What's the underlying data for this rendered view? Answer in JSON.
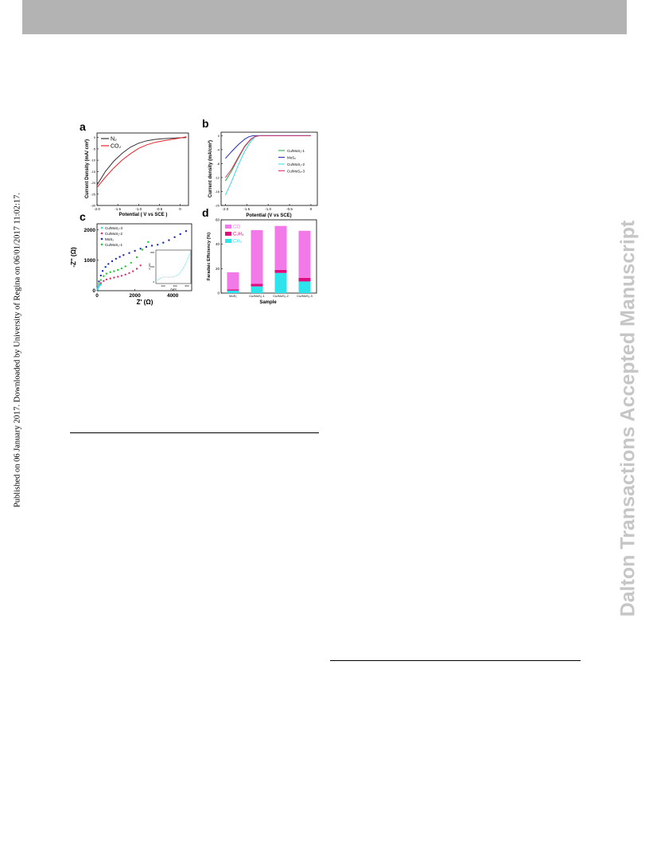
{
  "header_bar_color": "#b3b3b3",
  "side_note": "Published on 06 January 2017. Downloaded by University of Regina on 06/01/2017 11:02:17.",
  "watermark": "Dalton Transactions Accepted Manuscript",
  "figure": {
    "panel_a": {
      "label": "a",
      "xlabel": "Potential ( V vs SCE )",
      "ylabel": "Current Density (mA/ cm²)",
      "xticks": [
        "-2.0",
        "-1.5",
        "-1.0",
        "-0.5",
        "0"
      ],
      "yticks": [
        "0",
        "-5",
        "-10",
        "-15",
        "-20",
        "-25",
        "-30"
      ],
      "legend": [
        {
          "label": "N₂",
          "color": "#333333"
        },
        {
          "label": "CO₂",
          "color": "#e8232a"
        }
      ]
    },
    "panel_b": {
      "label": "b",
      "xlabel": "Potential (V vs SCE)",
      "ylabel": "Current density (mA/cm²)",
      "xticks": [
        "-2.0",
        "-1.5",
        "-1.0",
        "-0.5",
        "0"
      ],
      "yticks": [
        "0",
        "-4",
        "-8",
        "-12",
        "-16",
        "-20"
      ],
      "legend": [
        {
          "label": "Cu/MoS₂-1",
          "color": "#22a63a"
        },
        {
          "label": "MoS₂",
          "color": "#1f2ab5"
        },
        {
          "label": "Cu/MoS₂-2",
          "color": "#38d8e6"
        },
        {
          "label": "Cu/MoS₂-3",
          "color": "#e0306d"
        }
      ]
    },
    "panel_c": {
      "label": "c",
      "xlabel": "Z' (Ω)",
      "ylabel": "-Z'' (Ω)",
      "xticks": [
        "0",
        "2000",
        "4000"
      ],
      "yticks": [
        "0",
        "1000",
        "2000"
      ],
      "legend": [
        {
          "label": "Cu/MoS₂-3",
          "color": "#38d8e6"
        },
        {
          "label": "Cu/MoS₂-2",
          "color": "#e0306d"
        },
        {
          "label": "MoS₂",
          "color": "#1f2ab5"
        },
        {
          "label": "Cu/MoS₂-1",
          "color": "#22cc33"
        }
      ],
      "inset_ylabel": "-Z'' (Ω)",
      "inset_xlabel": "Z' (Ω)",
      "inset_xticks": [
        "200",
        "400",
        "600"
      ],
      "inset_yticks": [
        "200",
        "100",
        "0"
      ]
    },
    "panel_d": {
      "label": "d",
      "xlabel": "Sample",
      "ylabel": "Faradaic Efficiency (%)",
      "yticks": [
        "0",
        "20",
        "40",
        "60"
      ],
      "legend": [
        {
          "label": "CO",
          "color": "#f27ae8"
        },
        {
          "label": "C₂H₄",
          "color": "#e00c7d"
        },
        {
          "label": "CH₄",
          "color": "#2de3ec"
        }
      ]
    }
  },
  "chart_data": [
    {
      "type": "line",
      "panel": "a",
      "xlabel": "Potential ( V vs SCE )",
      "ylabel": "Current Density (mA/ cm²)",
      "xlim": [
        -2.0,
        0.2
      ],
      "ylim": [
        -30,
        2
      ],
      "series": [
        {
          "name": "N₂",
          "x": [
            -2.0,
            -1.8,
            -1.6,
            -1.4,
            -1.2,
            -1.0,
            -0.8,
            -0.6,
            -0.4,
            -0.2,
            0.0,
            0.15
          ],
          "y": [
            -21,
            -15,
            -10.5,
            -7,
            -4.3,
            -2.5,
            -1.4,
            -0.8,
            -0.5,
            -0.3,
            -0.1,
            0
          ]
        },
        {
          "name": "CO₂",
          "x": [
            -2.0,
            -1.8,
            -1.6,
            -1.4,
            -1.2,
            -1.0,
            -0.8,
            -0.6,
            -0.4,
            -0.2,
            0.0,
            0.15
          ],
          "y": [
            -22,
            -17.5,
            -13.5,
            -10,
            -7.2,
            -4.8,
            -3.2,
            -2.1,
            -1.4,
            -0.8,
            -0.2,
            0.3
          ]
        }
      ]
    },
    {
      "type": "line",
      "panel": "b",
      "xlabel": "Potential (V vs SCE)",
      "ylabel": "Current density (mA/cm²)",
      "xlim": [
        -2.1,
        0.15
      ],
      "ylim": [
        -20,
        1
      ],
      "series": [
        {
          "name": "Cu/MoS₂-1",
          "x": [
            -2.0,
            -1.85,
            -1.7,
            -1.55,
            -1.4,
            -1.3,
            -1.2,
            -1.0,
            -0.5,
            0.0
          ],
          "y": [
            -13,
            -10,
            -6.5,
            -3.2,
            -1.0,
            -0.2,
            0,
            0,
            0,
            0
          ]
        },
        {
          "name": "MoS₂",
          "x": [
            -2.0,
            -1.85,
            -1.7,
            -1.55,
            -1.45,
            -1.35,
            -1.25,
            -1.0,
            -0.5,
            0.0
          ],
          "y": [
            -6.5,
            -4.5,
            -2.6,
            -1.0,
            -0.3,
            0,
            0,
            0,
            0,
            0
          ]
        },
        {
          "name": "Cu/MoS₂-2",
          "x": [
            -2.0,
            -1.85,
            -1.7,
            -1.55,
            -1.4,
            -1.3,
            -1.2,
            -1.0,
            -0.5,
            0.0
          ],
          "y": [
            -17,
            -13,
            -8.5,
            -4.5,
            -1.5,
            -0.3,
            0,
            0,
            0,
            0
          ]
        },
        {
          "name": "Cu/MoS₂-3",
          "x": [
            -2.0,
            -1.85,
            -1.7,
            -1.55,
            -1.4,
            -1.3,
            -1.2,
            -1.0,
            -0.5,
            0.0
          ],
          "y": [
            -12,
            -9.5,
            -6.2,
            -3.0,
            -0.9,
            -0.2,
            0,
            0,
            0,
            0
          ]
        }
      ]
    },
    {
      "type": "scatter",
      "panel": "c",
      "xlabel": "Z' (Ω)",
      "ylabel": "-Z'' (Ω)",
      "xlim": [
        0,
        5000
      ],
      "ylim": [
        0,
        2200
      ],
      "series": [
        {
          "name": "MoS₂",
          "x": [
            40,
            100,
            200,
            300,
            450,
            600,
            800,
            1000,
            1200,
            1400,
            1700,
            2000,
            2300,
            2600,
            2900,
            3200,
            3500,
            3800,
            4100,
            4400,
            4700
          ],
          "y": [
            100,
            300,
            500,
            650,
            780,
            880,
            970,
            1050,
            1110,
            1170,
            1240,
            1310,
            1380,
            1440,
            1480,
            1510,
            1580,
            1660,
            1760,
            1860,
            1960
          ]
        },
        {
          "name": "Cu/MoS₂-1",
          "x": [
            30,
            100,
            200,
            350,
            500,
            700,
            900,
            1100,
            1300,
            1500,
            1800,
            2100,
            2400,
            2700
          ],
          "y": [
            80,
            220,
            350,
            480,
            560,
            610,
            640,
            680,
            730,
            800,
            920,
            1100,
            1350,
            1600
          ]
        },
        {
          "name": "Cu/MoS₂-2",
          "x": [
            30,
            100,
            200,
            350,
            500,
            700,
            900,
            1100,
            1300,
            1500,
            1700,
            1900,
            2100,
            2300
          ],
          "y": [
            60,
            160,
            250,
            320,
            370,
            400,
            430,
            460,
            490,
            530,
            580,
            640,
            720,
            830
          ]
        },
        {
          "name": "Cu/MoS₂-3",
          "x": [
            20,
            50,
            80,
            110,
            140,
            170,
            200
          ],
          "y": [
            40,
            90,
            130,
            160,
            180,
            190,
            200
          ]
        }
      ]
    },
    {
      "type": "bar",
      "panel": "d",
      "xlabel": "Sample",
      "ylabel": "Faradaic Efficiency (%)",
      "categories": [
        "MoS₂",
        "Cu/MoS₂-1",
        "Cu/MoS₂-2",
        "Cu/MoS₂-3"
      ],
      "ylim": [
        0,
        60
      ],
      "stacked": true,
      "series": [
        {
          "name": "CH₄",
          "values": [
            2.0,
            5.5,
            16.5,
            9.5
          ]
        },
        {
          "name": "C₂H₄",
          "values": [
            1.0,
            2.0,
            2.5,
            3.0
          ]
        },
        {
          "name": "CO",
          "values": [
            14.0,
            44.0,
            36.0,
            38.5
          ]
        }
      ]
    }
  ]
}
